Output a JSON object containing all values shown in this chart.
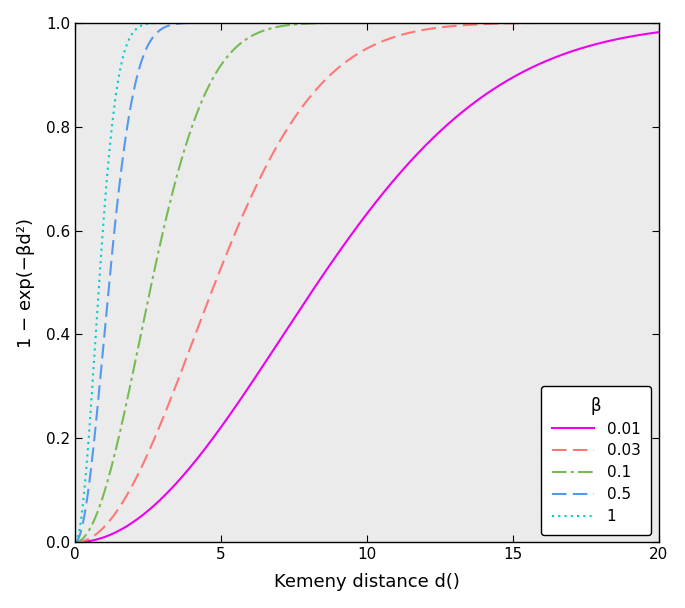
{
  "betas": [
    0.01,
    0.03,
    0.1,
    0.5,
    1
  ],
  "beta_labels": [
    "0.01",
    "0.03",
    "0.1",
    "0.5",
    "1"
  ],
  "colors": [
    "#EE00EE",
    "#FF7777",
    "#77BB55",
    "#5599EE",
    "#00CCCC"
  ],
  "linestyles": [
    "solid",
    "dashed",
    "dashdot",
    "dashed",
    "dotted"
  ],
  "linewidths": [
    1.5,
    1.5,
    1.5,
    1.5,
    1.5
  ],
  "x_min": 0,
  "x_max": 20,
  "y_min": 0,
  "y_max": 1.0,
  "xlabel": "Kemeny distance d()",
  "ylabel": "1 − exp(−βd²)",
  "legend_title": "β",
  "legend_loc": "lower right",
  "x_ticks": [
    0,
    5,
    10,
    15,
    20
  ],
  "y_ticks": [
    0.0,
    0.2,
    0.4,
    0.6,
    0.8,
    1.0
  ],
  "plot_bg_color": "#EBEBEB",
  "fig_bg_color": "#FFFFFF"
}
